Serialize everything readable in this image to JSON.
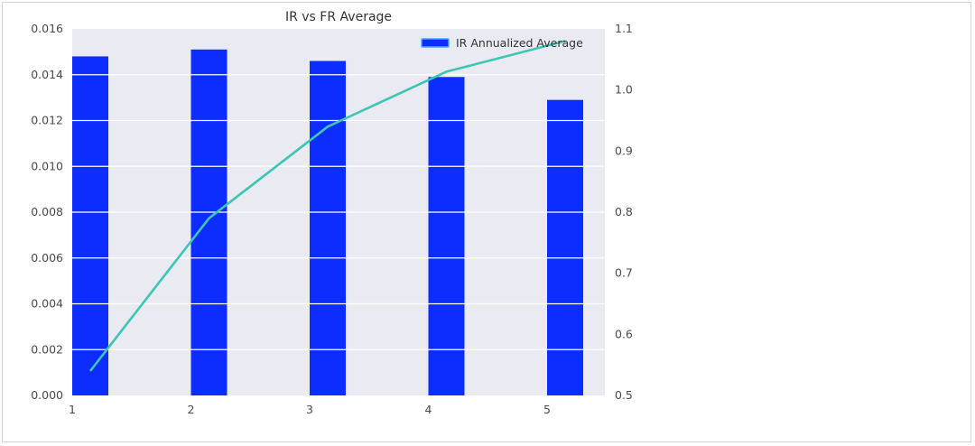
{
  "chart_data": {
    "type": "bar",
    "title": "IR vs FR Average",
    "xlabel": "",
    "ylabel": "",
    "categories": [
      "1",
      "2",
      "3",
      "4",
      "5"
    ],
    "series": [
      {
        "name": "IR Annualized Average",
        "type": "bar",
        "axis": "left",
        "values": [
          0.0148,
          0.0151,
          0.0146,
          0.0139,
          0.0129
        ],
        "color": "#0d2dff"
      },
      {
        "type": "line",
        "axis": "right",
        "values": [
          0.54,
          0.79,
          0.94,
          1.03,
          1.08
        ],
        "color": "#3cc6b4"
      }
    ],
    "ylim": [
      0,
      0.016
    ],
    "y_ticks": [
      "0.000",
      "0.002",
      "0.004",
      "0.006",
      "0.008",
      "0.010",
      "0.012",
      "0.014",
      "0.016"
    ],
    "y2lim": [
      0.5,
      1.1
    ],
    "y2_ticks": [
      "0.5",
      "0.6",
      "0.7",
      "0.8",
      "0.9",
      "1.0",
      "1.1"
    ],
    "x_ticks": [
      "1",
      "2",
      "3",
      "4",
      "5"
    ],
    "grid": true,
    "legend_position": "top-right",
    "background_color": "#eaeaf2",
    "grid_color": "#ffffff"
  }
}
